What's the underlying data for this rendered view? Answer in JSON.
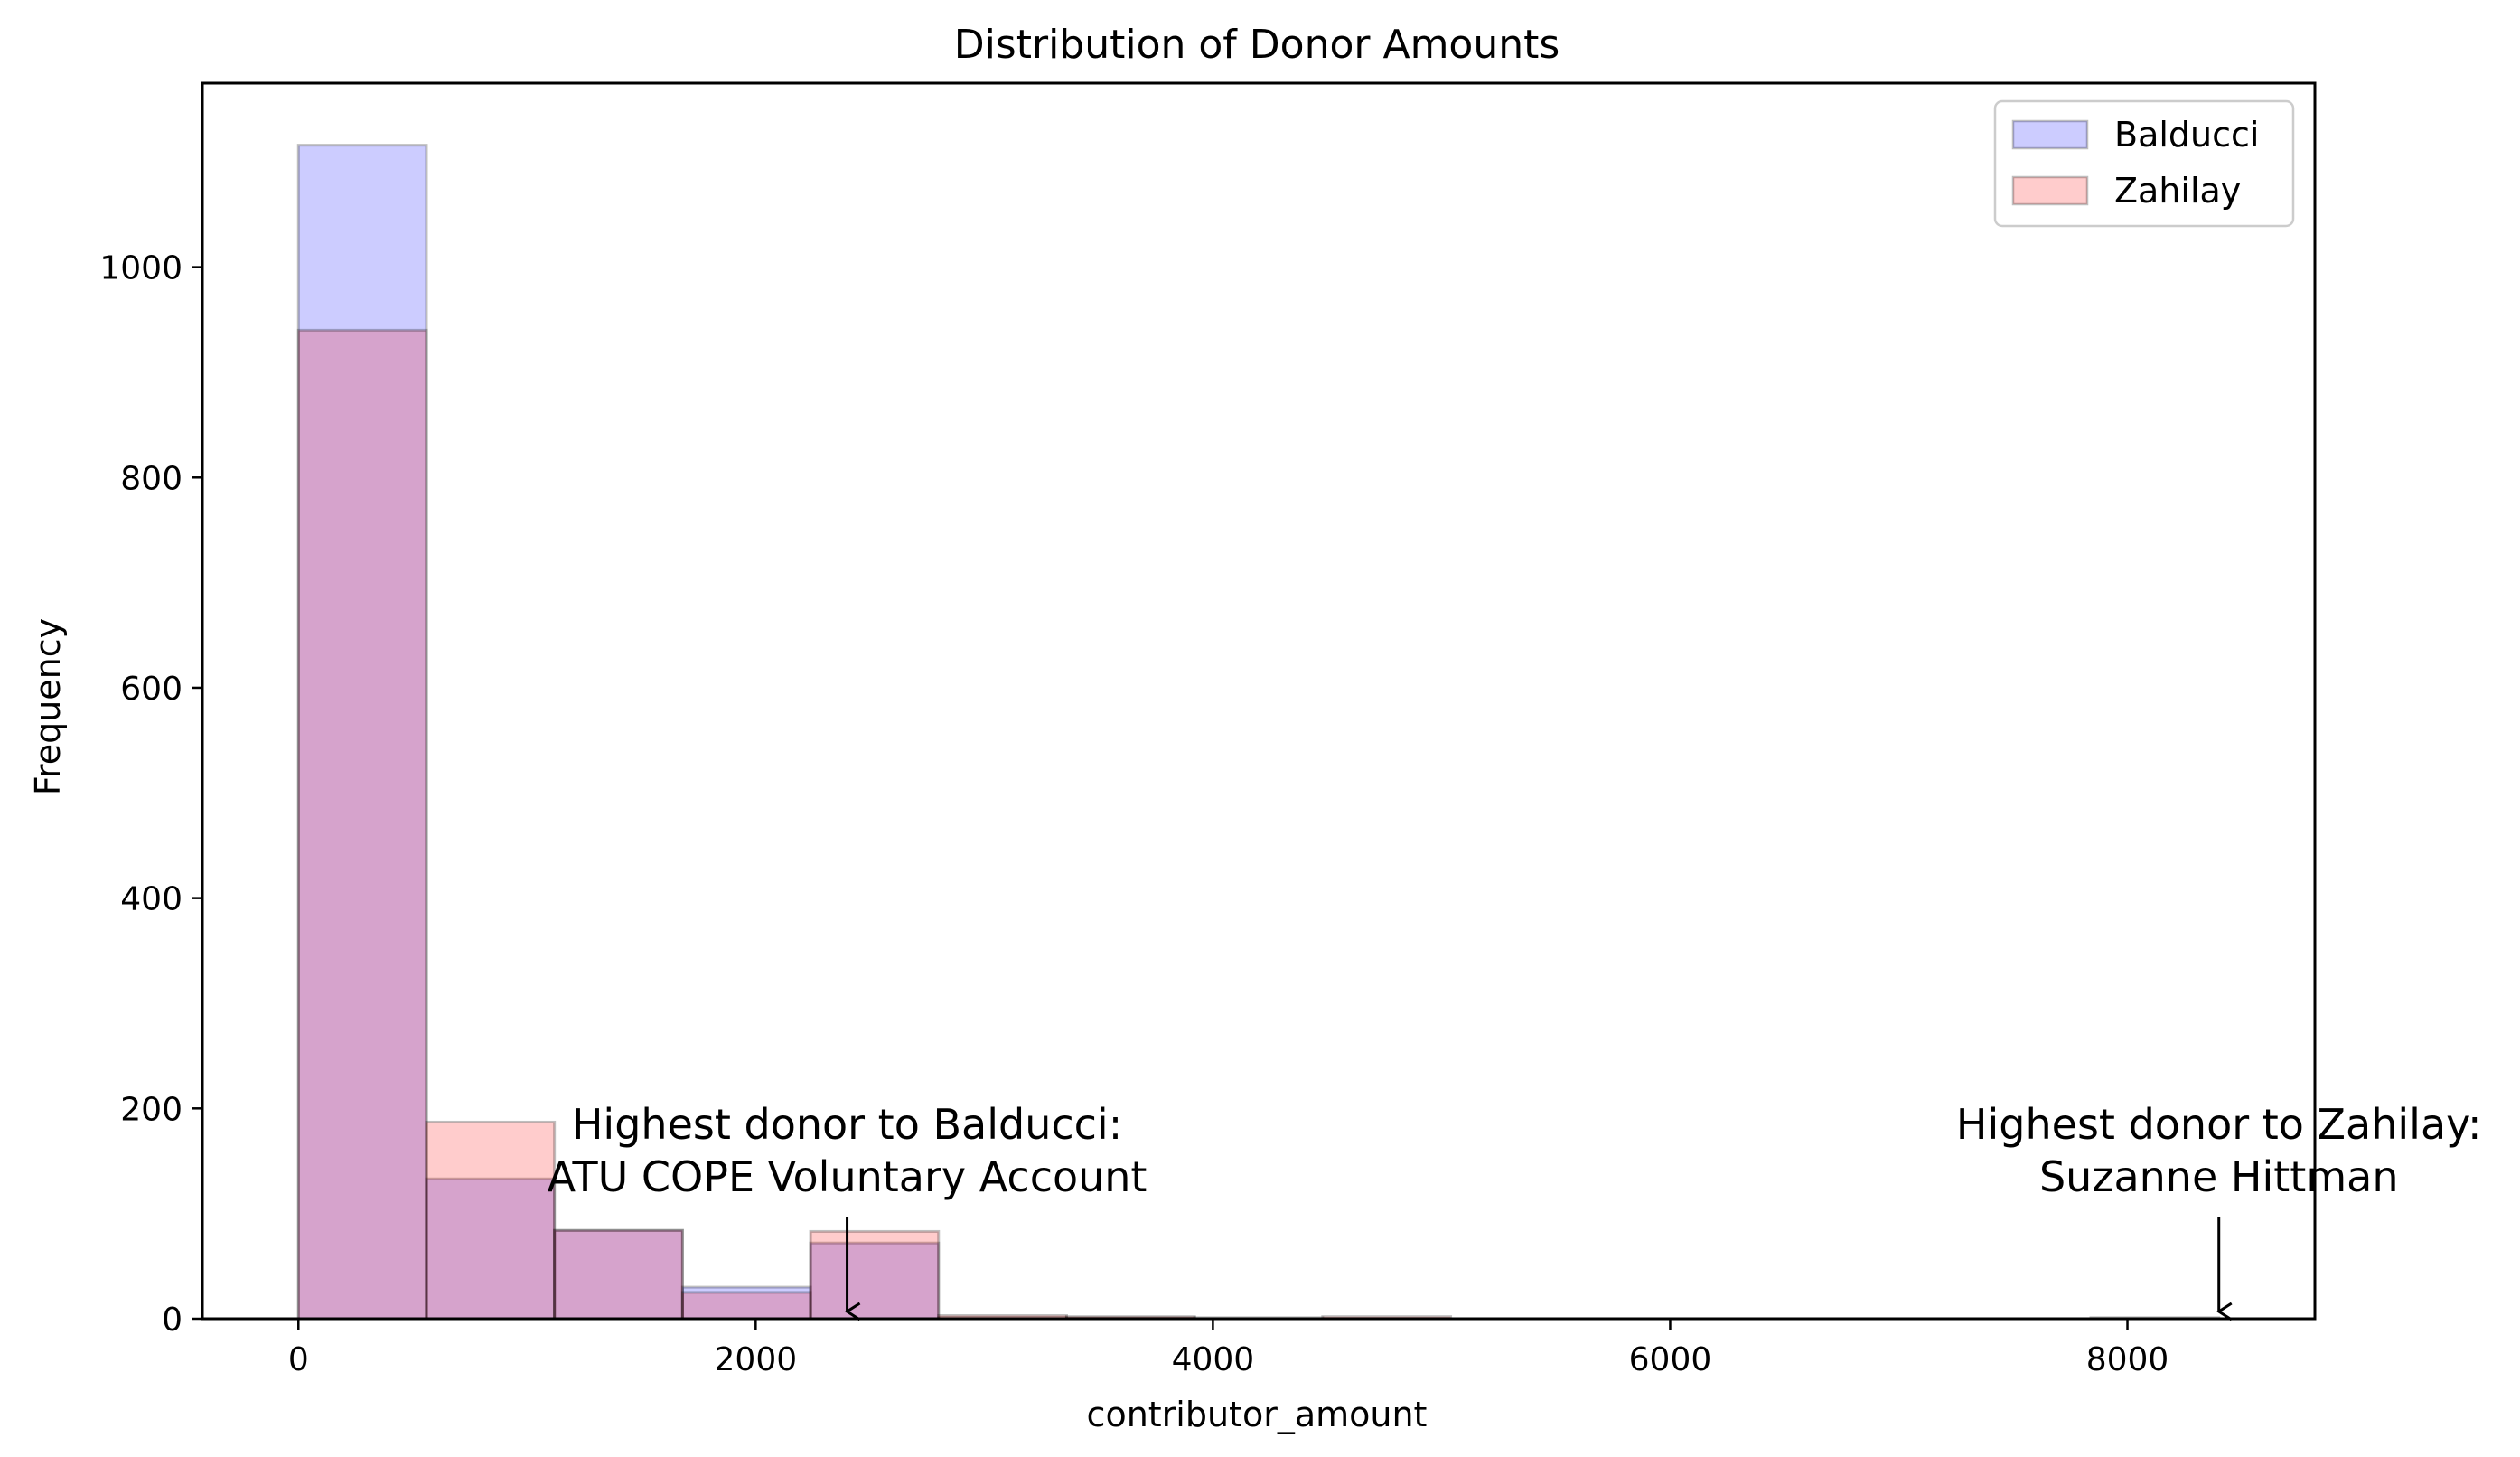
{
  "chart_data": {
    "type": "histogram",
    "title": "Distribution of Donor Amounts",
    "xlabel": "contributor_amount",
    "ylabel": "Frequency",
    "xlim": [
      -420,
      8820
    ],
    "ylim": [
      0,
      1175
    ],
    "x_ticks": [
      0,
      2000,
      4000,
      6000,
      8000
    ],
    "y_ticks": [
      0,
      200,
      400,
      600,
      800,
      1000
    ],
    "bin_edges": [
      0,
      560,
      1120,
      1680,
      2240,
      2800,
      3360,
      3920,
      4480,
      5040,
      5600,
      6160,
      6720,
      7280,
      7840,
      8400,
      8960
    ],
    "series": [
      {
        "name": "Balducci",
        "color": "#0000ff",
        "opacity": 0.2,
        "values": [
          1116,
          133,
          84,
          30,
          72,
          1,
          1,
          0,
          0,
          0,
          0,
          0,
          0,
          0,
          0,
          0
        ]
      },
      {
        "name": "Zahilay",
        "color": "#ff0000",
        "opacity": 0.2,
        "values": [
          940,
          187,
          84,
          25,
          83,
          3,
          2,
          1,
          2,
          0,
          0,
          0,
          0,
          0,
          1,
          0
        ]
      }
    ],
    "legend": {
      "position": "top-right"
    },
    "grid": false,
    "annotations": [
      {
        "lines": [
          "Highest donor to Balducci:",
          "ATU COPE Voluntary Account"
        ],
        "x": 2400,
        "y": 0
      },
      {
        "lines": [
          "Highest donor to Zahilay:",
          "Suzanne Hittman"
        ],
        "x": 8400,
        "y": 0
      }
    ]
  }
}
